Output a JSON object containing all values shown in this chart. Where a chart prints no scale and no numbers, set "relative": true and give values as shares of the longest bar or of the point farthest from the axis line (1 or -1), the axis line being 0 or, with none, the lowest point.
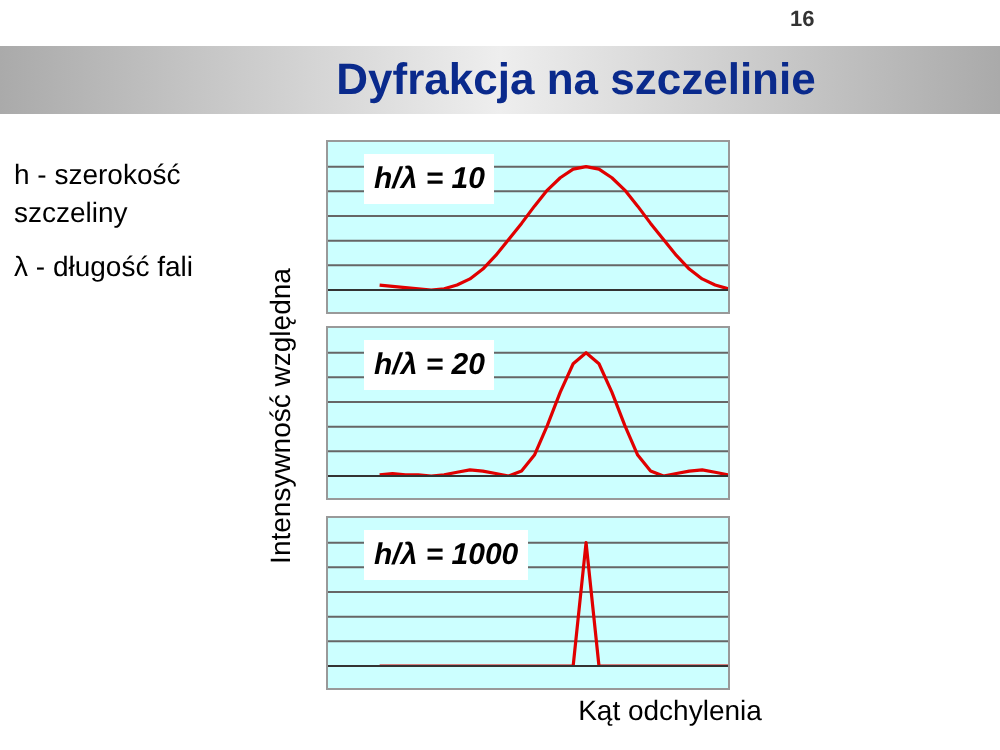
{
  "chart_data": [
    {
      "type": "line",
      "title": "Dyfrakcja na szczelinie",
      "annotations": [
        "16",
        "h - szerokość szczeliny",
        "λ - długość fali",
        "h/λ = 10"
      ],
      "relative": true,
      "grid": "y",
      "tick_labels": false,
      "categories": [
        null,
        null,
        null,
        null,
        null,
        null,
        null,
        null,
        null,
        null,
        null,
        null,
        null,
        null,
        null,
        null,
        null,
        null,
        null,
        null,
        null,
        null,
        null,
        null,
        null,
        null,
        null,
        null,
        null,
        null,
        null,
        null
      ],
      "series": [
        {
          "color": "#e00000",
          "values": [
            null,
            null,
            null,
            null,
            0.04,
            0.03,
            0.02,
            0.01,
            0,
            0.01,
            0.04,
            0.09,
            0.17,
            0.28,
            0.41,
            0.54,
            0.68,
            0.81,
            0.91,
            0.98,
            1,
            0.98,
            0.91,
            0.81,
            0.68,
            0.54,
            0.41,
            0.28,
            0.17,
            0.09,
            0.04,
            0.01
          ]
        }
      ]
    },
    {
      "type": "line",
      "ylabel": "Intensywność względna",
      "annotations": [
        "h/λ = 20"
      ],
      "relative": true,
      "grid": "y",
      "tick_labels": false,
      "categories": [
        null,
        null,
        null,
        null,
        null,
        null,
        null,
        null,
        null,
        null,
        null,
        null,
        null,
        null,
        null,
        null,
        null,
        null,
        null,
        null,
        null,
        null,
        null,
        null,
        null,
        null,
        null,
        null,
        null,
        null,
        null,
        null
      ],
      "series": [
        {
          "color": "#e00000",
          "values": [
            null,
            null,
            null,
            null,
            0.01,
            0.02,
            0.01,
            0.01,
            0,
            0.01,
            0.03,
            0.05,
            0.04,
            0.02,
            0,
            0.04,
            0.17,
            0.41,
            0.68,
            0.91,
            1,
            0.91,
            0.68,
            0.41,
            0.17,
            0.04,
            0,
            0.02,
            0.04,
            0.05,
            0.03,
            0.01
          ]
        }
      ]
    },
    {
      "type": "line",
      "xlabel": "Kąt odchylenia",
      "annotations": [
        "h/λ = 1000"
      ],
      "relative": true,
      "grid": "y",
      "tick_labels": false,
      "categories": [
        null,
        null,
        null,
        null,
        null,
        null,
        null,
        null,
        null,
        null,
        null,
        null,
        null,
        null,
        null,
        null,
        null,
        null,
        null,
        null,
        null,
        null,
        null,
        null,
        null,
        null,
        null,
        null,
        null,
        null,
        null,
        null
      ],
      "series": [
        {
          "color": "#e00000",
          "values": [
            null,
            null,
            null,
            null,
            0,
            0,
            0,
            0,
            0,
            0,
            0,
            0,
            0,
            0,
            0,
            0,
            0,
            0,
            0,
            0,
            1,
            0,
            0,
            0,
            0,
            0,
            0,
            0,
            0,
            0,
            0,
            0
          ]
        }
      ]
    }
  ]
}
